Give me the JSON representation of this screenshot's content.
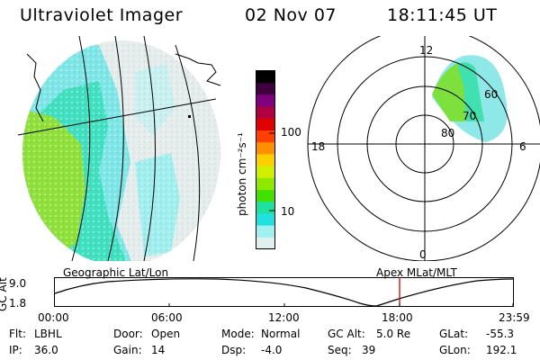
{
  "header": {
    "instrument": "Ultraviolet Imager",
    "date": "02 Nov 07",
    "time": "18:11:45 UT"
  },
  "colorbar": {
    "label": "photon cm⁻²s⁻¹",
    "ticks": [
      "100",
      "10"
    ],
    "colors": [
      "#000000",
      "#400040",
      "#800080",
      "#b00040",
      "#e00000",
      "#ff4000",
      "#ff9000",
      "#ffd000",
      "#d0f000",
      "#90e800",
      "#40e000",
      "#20e0a0",
      "#20e0e0",
      "#a0f0f0",
      "#e0f0f0"
    ]
  },
  "polar_plot": {
    "labels": {
      "top": "12",
      "bottom": "0",
      "left": "18",
      "right": "6"
    },
    "rings": [
      "60",
      "70",
      "80"
    ]
  },
  "timeline": {
    "left_title": "Geographic Lat/Lon",
    "right_title": "Apex  MLat/MLT",
    "y_axis_label": "GC Alt",
    "y_max": "9.0",
    "y_min": "1.8",
    "x_ticks": [
      "00:00",
      "06:00",
      "12:00",
      "18:00",
      "23:59"
    ],
    "current_time_color": "#d00000"
  },
  "status": {
    "row1": [
      {
        "key": "Flt:",
        "value": "LBHL"
      },
      {
        "key": "Door:",
        "value": "Open"
      },
      {
        "key": "Mode:",
        "value": "Normal"
      },
      {
        "key": "GC Alt:",
        "value": "5.0 Re"
      },
      {
        "key": "GLat:",
        "value": "-55.3"
      }
    ],
    "row2": [
      {
        "key": "IP:",
        "value": "36.0"
      },
      {
        "key": "Gain:",
        "value": "14"
      },
      {
        "key": "Dsp:",
        "value": "-4.0"
      },
      {
        "key": "Seq:",
        "value": "39"
      },
      {
        "key": "GLon:",
        "value": "192.1"
      }
    ]
  }
}
